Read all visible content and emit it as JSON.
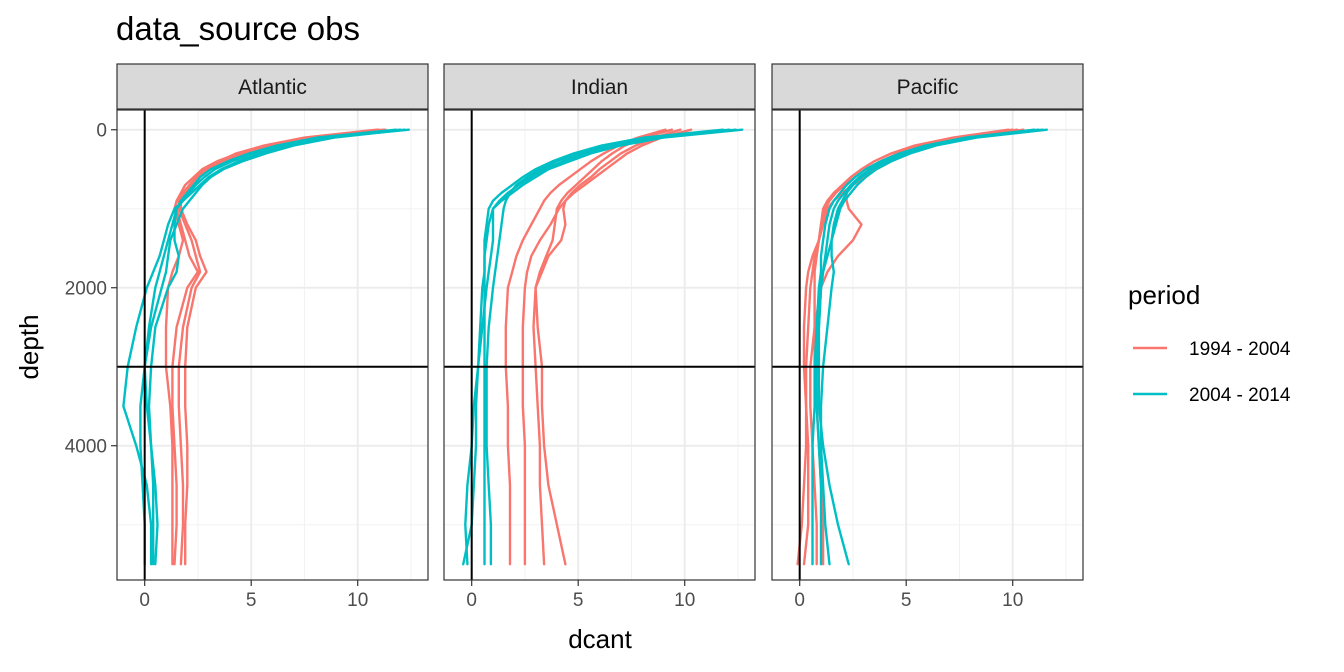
{
  "chart_data": {
    "type": "line",
    "title": "data_source obs",
    "xlabel": "dcant",
    "ylabel": "depth",
    "xlim": [
      -1.3,
      13.3
    ],
    "ylim": [
      5700,
      -250
    ],
    "y_reversed": true,
    "x_ticks": [
      0,
      5,
      10
    ],
    "y_ticks": [
      0,
      2000,
      4000
    ],
    "reference_lines": {
      "x": 0,
      "y": 3000
    },
    "grid": true,
    "legend": {
      "title": "period",
      "placement": "right",
      "entries": [
        {
          "label": "1994 - 2004",
          "color": "#F8766D"
        },
        {
          "label": "2004 - 2014",
          "color": "#00BFC4"
        }
      ]
    },
    "depths": [
      0,
      100,
      200,
      300,
      400,
      500,
      600,
      700,
      800,
      900,
      1000,
      1200,
      1400,
      1600,
      1800,
      2000,
      2500,
      3000,
      3500,
      4000,
      4500,
      5000,
      5500
    ],
    "panels": [
      {
        "name": "Atlantic",
        "series": [
          {
            "period": "1994 - 2004",
            "values": [
              11.3,
              8.0,
              6.0,
              4.7,
              3.8,
              3.0,
              2.6,
              2.3,
              2.0,
              1.7,
              1.5,
              1.7,
              1.9,
              2.1,
              2.5,
              2.0,
              1.5,
              1.3,
              1.3,
              1.4,
              1.5,
              1.5,
              1.4
            ]
          },
          {
            "period": "1994 - 2004",
            "values": [
              10.9,
              7.5,
              5.6,
              4.3,
              3.5,
              2.8,
              2.4,
              2.1,
              1.8,
              1.6,
              1.6,
              1.9,
              2.2,
              2.4,
              2.6,
              2.2,
              1.8,
              1.6,
              1.6,
              1.7,
              1.8,
              1.8,
              1.7
            ]
          },
          {
            "period": "1994 - 2004",
            "values": [
              11.2,
              7.8,
              5.8,
              4.5,
              3.6,
              2.9,
              2.5,
              2.2,
              1.9,
              1.7,
              1.7,
              2.0,
              2.4,
              2.6,
              2.9,
              2.4,
              2.0,
              1.9,
              1.9,
              2.0,
              2.0,
              1.9,
              1.9
            ]
          },
          {
            "period": "1994 - 2004",
            "values": [
              11.0,
              7.6,
              5.7,
              4.4,
              3.4,
              2.7,
              2.3,
              1.9,
              1.7,
              1.5,
              1.4,
              1.6,
              1.8,
              1.6,
              1.3,
              1.1,
              1.0,
              1.0,
              1.2,
              1.3,
              1.3,
              1.3,
              1.3
            ]
          },
          {
            "period": "2004 - 2014",
            "values": [
              12.4,
              8.6,
              6.7,
              5.4,
              4.4,
              3.6,
              3.0,
              2.6,
              2.2,
              1.8,
              1.4,
              1.1,
              0.9,
              0.7,
              0.4,
              0.1,
              -0.4,
              -0.8,
              -1.0,
              -0.4,
              0.1,
              0.3,
              0.3
            ]
          },
          {
            "period": "2004 - 2014",
            "values": [
              12.2,
              8.9,
              7.0,
              5.7,
              4.6,
              3.7,
              3.1,
              2.7,
              2.4,
              2.1,
              1.8,
              1.5,
              1.2,
              1.1,
              1.0,
              0.8,
              0.3,
              0.0,
              -0.2,
              -0.2,
              -0.1,
              0.0,
              0.0
            ]
          },
          {
            "period": "2004 - 2014",
            "values": [
              12.0,
              8.4,
              6.5,
              5.1,
              4.1,
              3.3,
              2.8,
              2.4,
              2.1,
              1.8,
              1.5,
              1.3,
              1.1,
              0.9,
              0.7,
              0.5,
              0.2,
              0.0,
              0.1,
              0.3,
              0.4,
              0.4,
              0.4
            ]
          },
          {
            "period": "2004 - 2014",
            "values": [
              11.8,
              8.1,
              6.2,
              4.9,
              3.9,
              3.1,
              2.6,
              2.3,
              2.0,
              1.7,
              1.5,
              1.4,
              1.4,
              1.6,
              1.5,
              1.1,
              0.5,
              0.3,
              0.2,
              0.3,
              0.5,
              0.6,
              0.5
            ]
          }
        ]
      },
      {
        "name": "Indian",
        "series": [
          {
            "period": "1994 - 2004",
            "values": [
              10.3,
              8.9,
              8.0,
              7.3,
              6.8,
              6.3,
              5.8,
              5.3,
              4.8,
              4.4,
              4.1,
              3.7,
              3.2,
              2.8,
              2.6,
              2.5,
              2.4,
              2.4,
              2.4,
              2.5,
              2.5,
              2.5,
              2.5
            ]
          },
          {
            "period": "1994 - 2004",
            "values": [
              9.8,
              8.6,
              7.7,
              7.0,
              6.5,
              6.0,
              5.6,
              5.1,
              4.7,
              4.4,
              4.3,
              4.4,
              4.2,
              3.6,
              3.3,
              3.0,
              2.9,
              3.0,
              3.1,
              3.2,
              3.2,
              3.3,
              3.4
            ]
          },
          {
            "period": "1994 - 2004",
            "values": [
              9.4,
              8.1,
              7.2,
              6.6,
              6.1,
              5.7,
              5.3,
              4.9,
              4.5,
              4.2,
              4.0,
              3.9,
              3.8,
              3.5,
              3.2,
              3.0,
              3.1,
              3.3,
              3.3,
              3.4,
              3.6,
              4.0,
              4.4
            ]
          },
          {
            "period": "1994 - 2004",
            "values": [
              9.1,
              7.8,
              6.9,
              6.2,
              5.6,
              5.1,
              4.6,
              4.1,
              3.7,
              3.4,
              3.2,
              2.8,
              2.4,
              2.1,
              1.9,
              1.7,
              1.6,
              1.6,
              1.7,
              1.7,
              1.8,
              1.8,
              1.8
            ]
          },
          {
            "period": "2004 - 2014",
            "values": [
              12.7,
              9.0,
              7.0,
              5.6,
              4.6,
              3.6,
              3.0,
              2.4,
              1.9,
              1.4,
              1.0,
              0.8,
              0.7,
              0.6,
              0.6,
              0.5,
              0.4,
              0.3,
              0.2,
              0.2,
              0.1,
              0.0,
              -0.4
            ]
          },
          {
            "period": "2004 - 2014",
            "values": [
              12.4,
              8.7,
              6.7,
              5.3,
              4.3,
              3.4,
              2.8,
              2.2,
              1.7,
              1.3,
              1.0,
              1.0,
              1.0,
              0.9,
              0.8,
              0.7,
              0.5,
              0.3,
              0.1,
              0.0,
              -0.2,
              -0.3,
              -0.2
            ]
          },
          {
            "period": "2004 - 2014",
            "values": [
              12.1,
              8.4,
              6.4,
              5.0,
              4.0,
              3.2,
              2.6,
              2.1,
              1.8,
              1.6,
              1.5,
              1.4,
              1.3,
              1.2,
              1.1,
              1.0,
              0.8,
              0.7,
              0.7,
              0.7,
              0.8,
              0.9,
              0.9
            ]
          },
          {
            "period": "2004 - 2014",
            "values": [
              11.8,
              8.1,
              6.1,
              4.8,
              3.8,
              3.0,
              2.4,
              1.9,
              1.4,
              1.0,
              0.8,
              0.7,
              0.6,
              0.6,
              0.6,
              0.6,
              0.6,
              0.6,
              0.6,
              0.6,
              0.6,
              0.6,
              0.6
            ]
          }
        ]
      },
      {
        "name": "Pacific",
        "series": [
          {
            "period": "1994 - 2004",
            "values": [
              10.5,
              7.9,
              6.2,
              5.1,
              4.3,
              3.6,
              3.0,
              2.5,
              2.0,
              1.6,
              1.3,
              1.1,
              0.9,
              0.6,
              0.4,
              0.3,
              0.2,
              0.2,
              0.3,
              0.4,
              0.4,
              0.4,
              0.2
            ]
          },
          {
            "period": "1994 - 2004",
            "values": [
              10.2,
              7.7,
              6.0,
              4.9,
              4.1,
              3.4,
              2.9,
              2.5,
              2.2,
              2.2,
              2.3,
              2.9,
              2.5,
              1.8,
              1.3,
              1.0,
              0.7,
              0.5,
              0.5,
              0.6,
              0.7,
              0.8,
              0.8
            ]
          },
          {
            "period": "1994 - 2004",
            "values": [
              10.0,
              7.4,
              5.7,
              4.6,
              3.8,
              3.1,
              2.6,
              2.1,
              1.7,
              1.4,
              1.2,
              1.0,
              0.9,
              0.7,
              0.6,
              0.5,
              0.4,
              0.3,
              0.3,
              0.3,
              0.2,
              0.1,
              -0.1
            ]
          },
          {
            "period": "1994 - 2004",
            "values": [
              9.8,
              7.2,
              5.4,
              4.3,
              3.5,
              2.9,
              2.4,
              2.0,
              1.6,
              1.3,
              1.1,
              1.0,
              0.9,
              0.8,
              0.7,
              0.7,
              0.7,
              0.7,
              0.8,
              0.9,
              1.0,
              1.1,
              1.1
            ]
          },
          {
            "period": "2004 - 2014",
            "values": [
              11.6,
              8.3,
              6.4,
              5.2,
              4.3,
              3.6,
              3.1,
              2.7,
              2.4,
              2.1,
              1.9,
              1.7,
              1.5,
              1.3,
              1.1,
              1.0,
              0.9,
              0.9,
              0.9,
              1.1,
              1.4,
              1.8,
              2.3
            ]
          },
          {
            "period": "2004 - 2014",
            "values": [
              11.4,
              8.1,
              6.2,
              5.0,
              4.1,
              3.4,
              2.9,
              2.5,
              2.2,
              2.0,
              1.8,
              1.6,
              1.5,
              1.5,
              1.6,
              1.5,
              1.3,
              1.1,
              1.0,
              1.0,
              1.1,
              1.2,
              1.4
            ]
          },
          {
            "period": "2004 - 2014",
            "values": [
              11.2,
              7.9,
              6.0,
              4.8,
              4.0,
              3.3,
              2.8,
              2.4,
              2.1,
              1.8,
              1.6,
              1.4,
              1.3,
              1.2,
              1.1,
              1.0,
              0.9,
              0.8,
              0.8,
              0.9,
              1.0,
              1.0,
              1.0
            ]
          },
          {
            "period": "2004 - 2014",
            "values": [
              11.0,
              7.8,
              5.9,
              4.7,
              3.8,
              3.1,
              2.6,
              2.2,
              1.9,
              1.6,
              1.4,
              1.2,
              1.1,
              1.0,
              1.0,
              0.9,
              0.8,
              0.7,
              0.7,
              0.6,
              0.6,
              0.6,
              0.6
            ]
          }
        ]
      }
    ]
  }
}
